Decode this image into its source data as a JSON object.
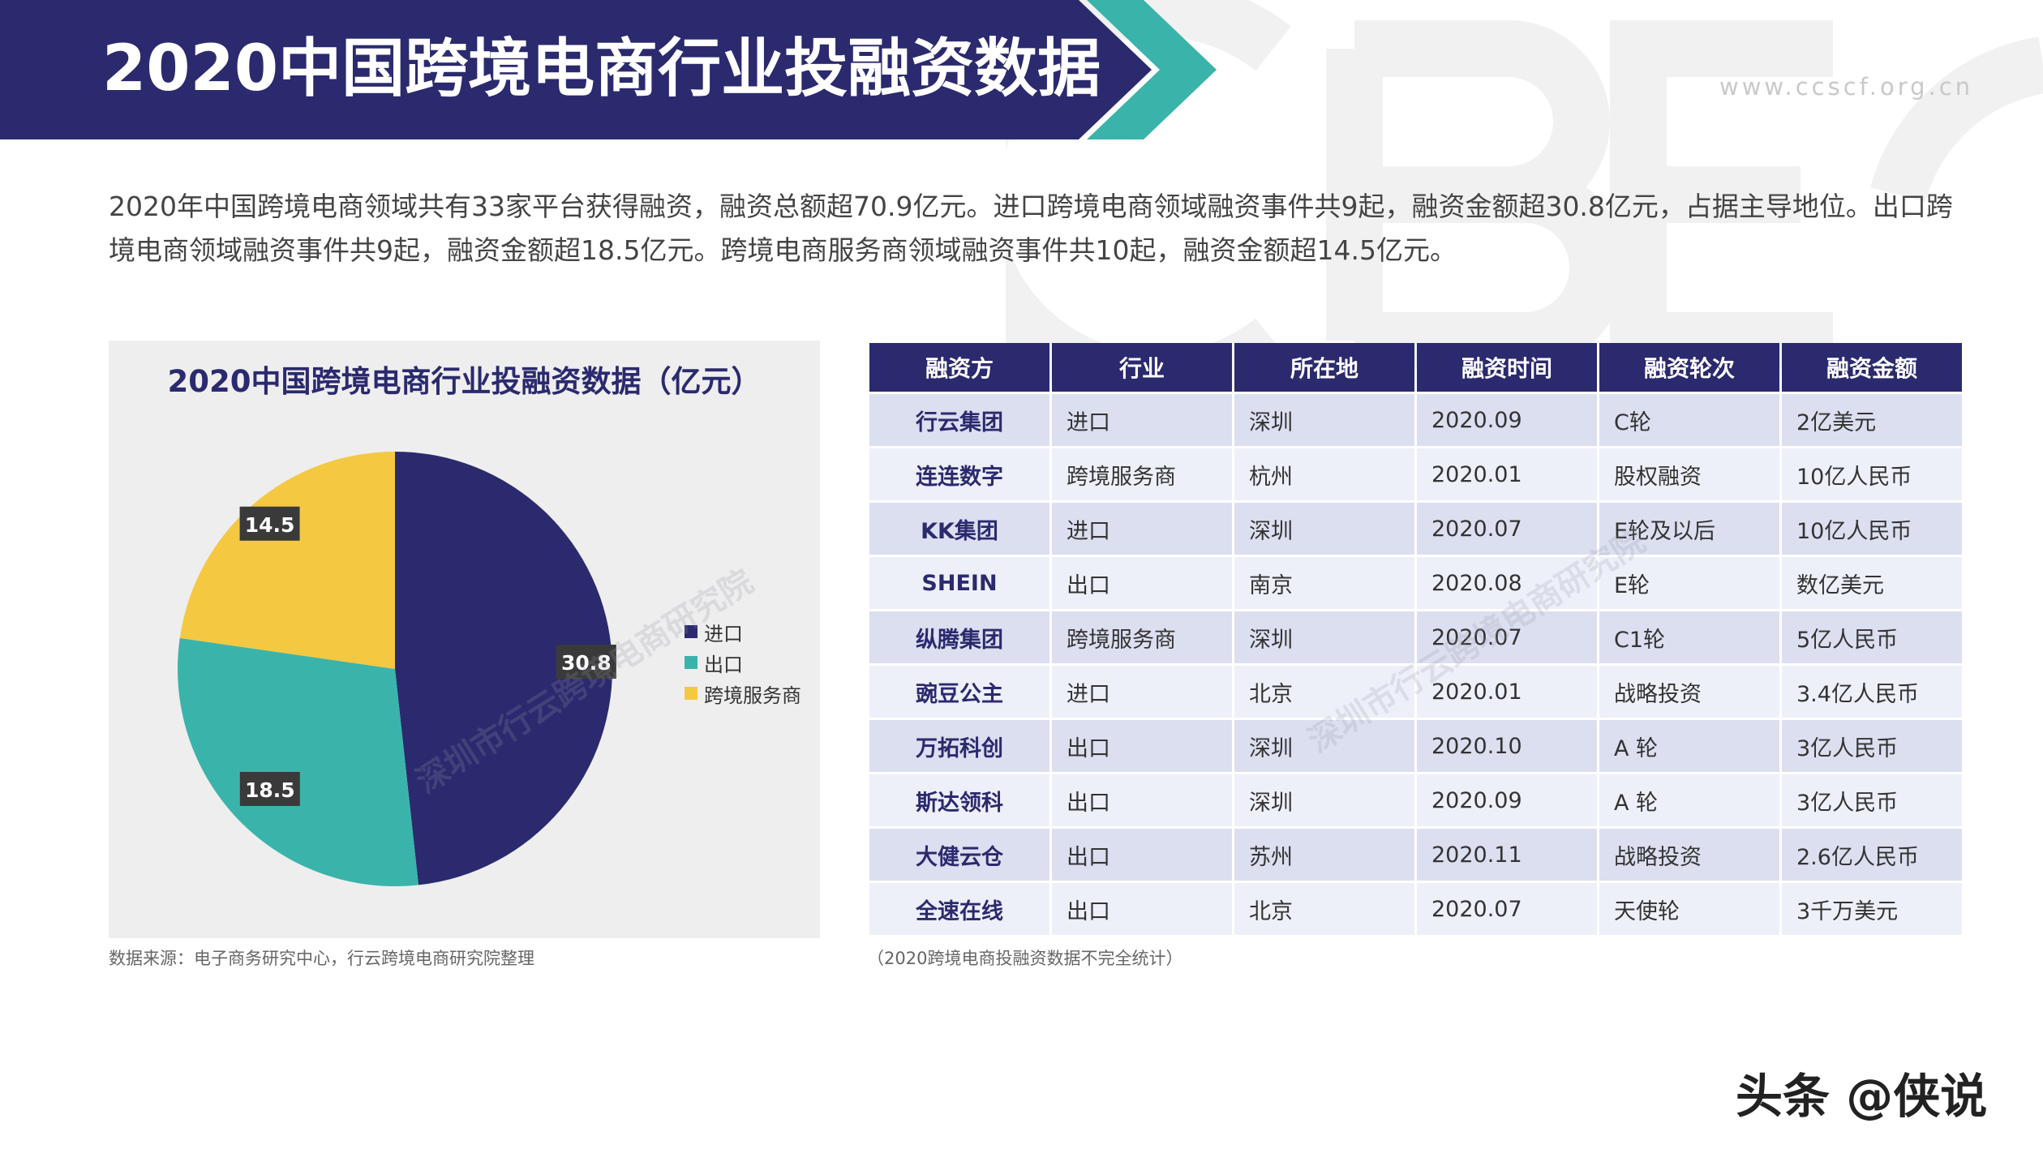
{
  "header": {
    "title": "2020中国跨境电商行业投融资数据",
    "site_url": "www.ccscf.org.cn",
    "colors": {
      "navy": "#2b2a6e",
      "teal": "#3ab4ab",
      "accent": "#f5c842"
    }
  },
  "intro_text": "2020年中国跨境电商领域共有33家平台获得融资，融资总额超70.9亿元。进口跨境电商领域融资事件共9起，融资金额超30.8亿元，占据主导地位。出口跨境电商领域融资事件共9起，融资金额超18.5亿元。跨境电商服务商领域融资事件共10起，融资金额超14.5亿元。",
  "chart_data": {
    "type": "pie",
    "title": "2020中国跨境电商行业投融资数据（亿元）",
    "categories": [
      "进口",
      "出口",
      "跨境服务商"
    ],
    "values": [
      30.8,
      18.5,
      14.5
    ],
    "labels": [
      "30.8",
      "18.5",
      "14.5"
    ],
    "colors": [
      "#2b2a6e",
      "#3ab4ab",
      "#f5c842"
    ],
    "legend_position": "right"
  },
  "source_note": "数据来源：电子商务研究中心，行云跨境电商研究院整理",
  "table": {
    "headers": [
      "融资方",
      "行业",
      "所在地",
      "融资时间",
      "融资轮次",
      "融资金额"
    ],
    "rows": [
      [
        "行云集团",
        "进口",
        "深圳",
        "2020.09",
        "C轮",
        "2亿美元"
      ],
      [
        "连连数字",
        "跨境服务商",
        "杭州",
        "2020.01",
        "股权融资",
        "10亿人民币"
      ],
      [
        "KK集团",
        "进口",
        "深圳",
        "2020.07",
        "E轮及以后",
        "10亿人民币"
      ],
      [
        "SHEIN",
        "出口",
        "南京",
        "2020.08",
        "E轮",
        "数亿美元"
      ],
      [
        "纵腾集团",
        "跨境服务商",
        "深圳",
        "2020.07",
        "C1轮",
        "5亿人民币"
      ],
      [
        "豌豆公主",
        "进口",
        "北京",
        "2020.01",
        "战略投资",
        "3.4亿人民币"
      ],
      [
        "万拓科创",
        "出口",
        "深圳",
        "2020.10",
        "A 轮",
        "3亿人民币"
      ],
      [
        "斯达领科",
        "出口",
        "深圳",
        "2020.09",
        "A 轮",
        "3亿人民币"
      ],
      [
        "大健云仓",
        "出口",
        "苏州",
        "2020.11",
        "战略投资",
        "2.6亿人民币"
      ],
      [
        "全速在线",
        "出口",
        "北京",
        "2020.07",
        "天使轮",
        "3千万美元"
      ]
    ],
    "note": "（2020跨境电商投融资数据不完全统计）"
  },
  "watermark": {
    "text": "深圳市行云跨境电商研究院",
    "logo": "CBEC"
  },
  "footer": {
    "brand": "头条 @侠说"
  }
}
